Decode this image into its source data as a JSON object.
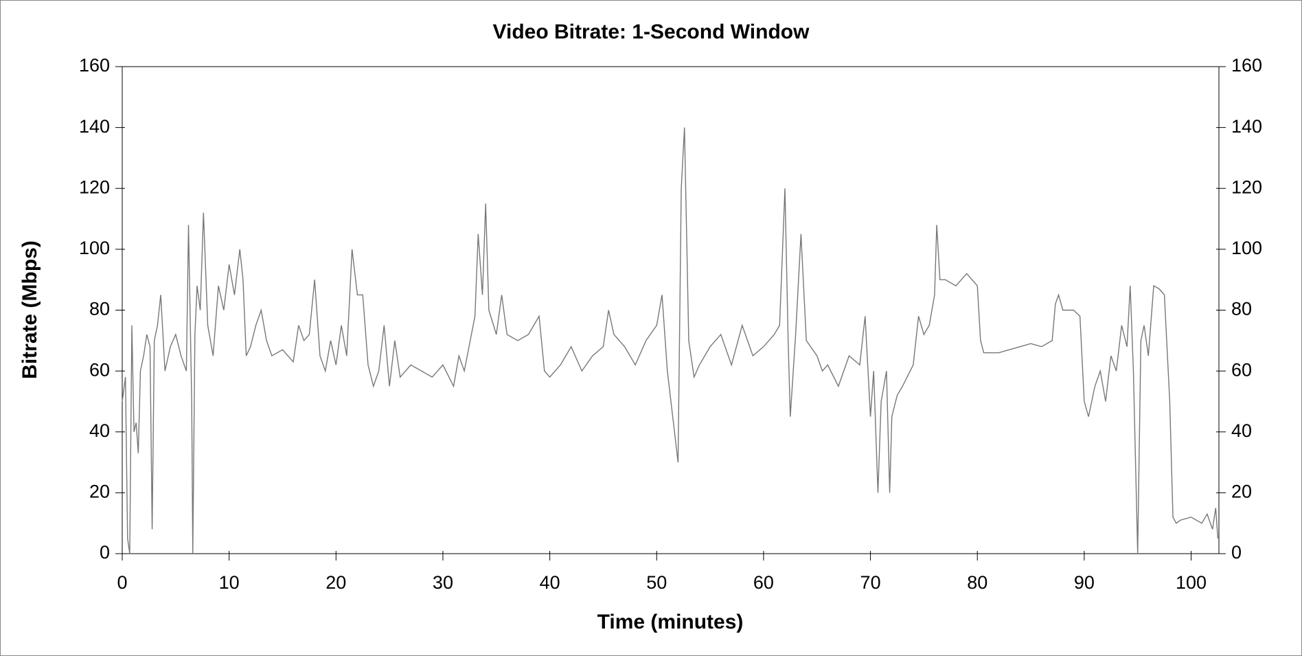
{
  "chart_data": {
    "type": "line",
    "title": "Video Bitrate: 1-Second Window",
    "x_label": "Time (minutes)",
    "y_label": "Bitrate (Mbps)",
    "color": "#777777",
    "xlim": [
      0,
      102.6
    ],
    "ylim": [
      0,
      160
    ],
    "xticks": [
      0,
      10,
      20,
      30,
      40,
      50,
      60,
      70,
      80,
      90,
      100
    ],
    "yticks": [
      0,
      20,
      40,
      60,
      80,
      100,
      120,
      140,
      160
    ],
    "x": [
      0,
      0.3,
      0.5,
      0.7,
      0.9,
      1.1,
      1.3,
      1.5,
      1.7,
      2,
      2.3,
      2.6,
      2.8,
      3,
      3.3,
      3.6,
      4,
      4.5,
      5,
      5.5,
      6,
      6.2,
      6.5,
      6.6,
      6.8,
      7,
      7.3,
      7.6,
      8,
      8.5,
      9,
      9.5,
      10,
      10.5,
      11,
      11.3,
      11.6,
      12,
      12.5,
      13,
      13.5,
      14,
      15,
      16,
      16.5,
      17,
      17.5,
      18,
      18.5,
      19,
      19.5,
      20,
      20.5,
      21,
      21.5,
      22,
      22.5,
      23,
      23.5,
      24,
      24.5,
      25,
      25.5,
      26,
      27,
      28,
      29,
      30,
      31,
      31.5,
      32,
      33,
      33.3,
      33.7,
      34,
      34.3,
      35,
      35.5,
      36,
      37,
      38,
      39,
      39.5,
      40,
      41,
      42,
      43,
      44,
      45,
      45.5,
      46,
      47,
      48,
      49,
      50,
      50.5,
      51,
      51.5,
      52,
      52.3,
      52.6,
      53,
      53.5,
      54,
      55,
      56,
      57,
      58,
      59,
      60,
      61,
      61.5,
      62,
      62.3,
      62.5,
      63,
      63.5,
      64,
      65,
      65.5,
      66,
      67,
      68,
      69,
      69.5,
      70,
      70.3,
      70.7,
      71,
      71.5,
      71.8,
      72,
      72.5,
      73,
      74,
      74.5,
      75,
      75.5,
      76,
      76.2,
      76.5,
      77,
      78,
      79,
      80,
      80.3,
      80.6,
      81,
      82,
      83,
      84,
      85,
      86,
      87,
      87.3,
      87.6,
      88,
      89,
      89.6,
      90,
      90.4,
      91,
      91.5,
      92,
      92.5,
      93,
      93.5,
      94,
      94.3,
      94.6,
      95,
      95.3,
      95.6,
      96,
      96.5,
      97,
      97.5,
      98,
      98.3,
      98.6,
      99,
      100,
      101,
      101.5,
      102,
      102.3,
      102.5
    ],
    "values": [
      50,
      58,
      5,
      0,
      75,
      40,
      43,
      33,
      60,
      65,
      72,
      68,
      8,
      70,
      75,
      85,
      60,
      68,
      72,
      65,
      60,
      108,
      50,
      0,
      72,
      88,
      80,
      112,
      75,
      65,
      88,
      80,
      95,
      85,
      100,
      90,
      65,
      68,
      75,
      80,
      70,
      65,
      67,
      63,
      75,
      70,
      72,
      90,
      65,
      60,
      70,
      62,
      75,
      65,
      100,
      85,
      85,
      62,
      55,
      60,
      75,
      55,
      70,
      58,
      62,
      60,
      58,
      62,
      55,
      65,
      60,
      78,
      105,
      85,
      115,
      80,
      72,
      85,
      72,
      70,
      72,
      78,
      60,
      58,
      62,
      68,
      60,
      65,
      68,
      80,
      72,
      68,
      62,
      70,
      75,
      85,
      60,
      45,
      30,
      120,
      140,
      70,
      58,
      62,
      68,
      72,
      62,
      75,
      65,
      68,
      72,
      75,
      120,
      70,
      45,
      72,
      105,
      70,
      65,
      60,
      62,
      55,
      65,
      62,
      78,
      45,
      60,
      20,
      50,
      60,
      20,
      45,
      52,
      55,
      62,
      78,
      72,
      75,
      85,
      108,
      90,
      90,
      88,
      92,
      88,
      70,
      66,
      66,
      66,
      67,
      68,
      69,
      68,
      70,
      82,
      85,
      80,
      80,
      78,
      50,
      45,
      55,
      60,
      50,
      65,
      60,
      75,
      68,
      88,
      60,
      0,
      70,
      75,
      65,
      88,
      87,
      85,
      50,
      12,
      10,
      11,
      12,
      10,
      13,
      8,
      15,
      5
    ]
  }
}
